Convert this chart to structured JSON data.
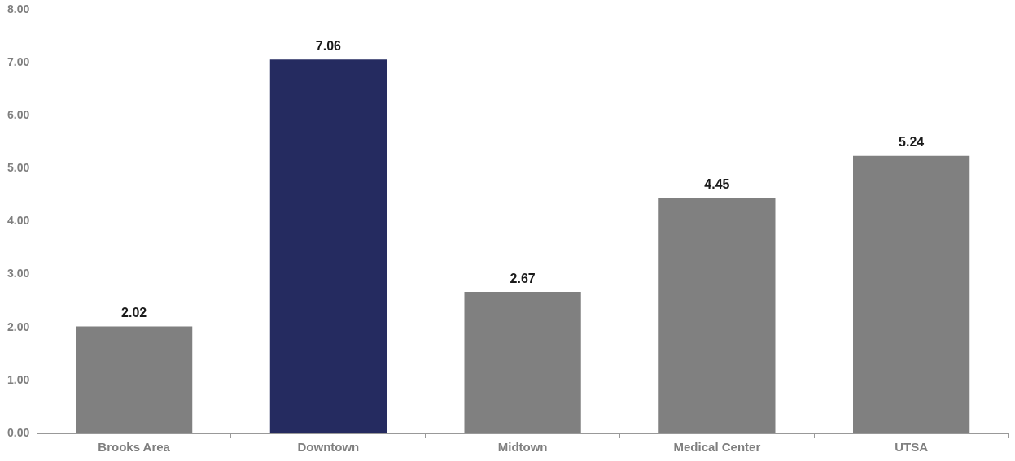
{
  "chart_data": {
    "type": "bar",
    "categories": [
      "Brooks Area",
      "Downtown",
      "Midtown",
      "Medical Center",
      "UTSA"
    ],
    "values": [
      2.02,
      7.06,
      2.67,
      4.45,
      5.24
    ],
    "colors": [
      "#808080",
      "#252b60",
      "#808080",
      "#808080",
      "#808080"
    ],
    "ylim": [
      0,
      8
    ],
    "yticks": [
      {
        "value": 0,
        "label": "0.00"
      },
      {
        "value": 1,
        "label": "1.00"
      },
      {
        "value": 2,
        "label": "2.00"
      },
      {
        "value": 3,
        "label": "3.00"
      },
      {
        "value": 4,
        "label": "4.00"
      },
      {
        "value": 5,
        "label": "5.00"
      },
      {
        "value": 6,
        "label": "6.00"
      },
      {
        "value": 7,
        "label": "7.00"
      },
      {
        "value": 8,
        "label": "8.00"
      }
    ],
    "grid": false,
    "data_labels": true
  }
}
